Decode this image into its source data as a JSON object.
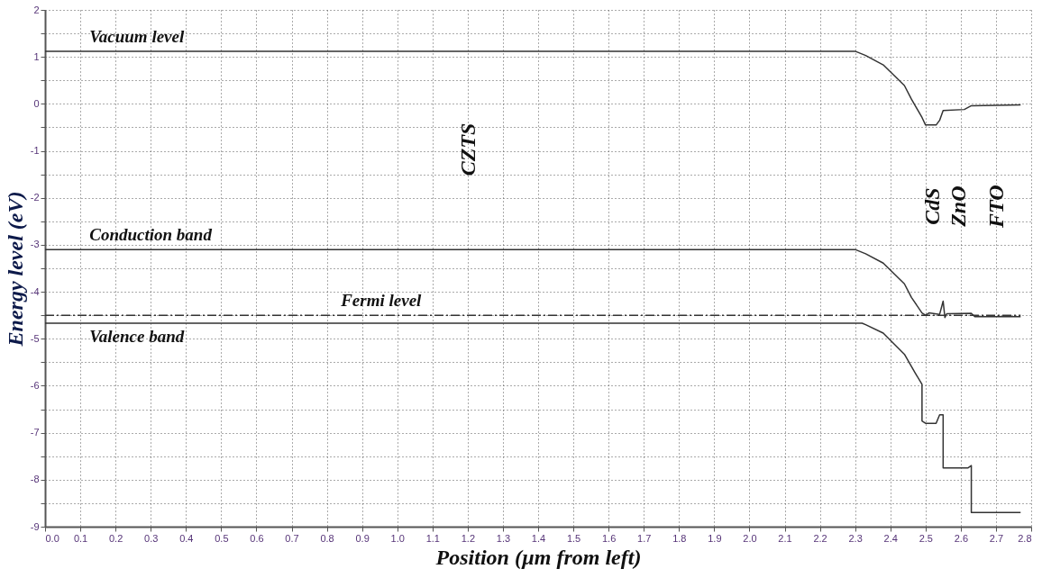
{
  "chart_data": {
    "type": "line",
    "xlabel": "Position (µm from left)",
    "ylabel": "Energy level (eV)",
    "xlim": [
      0,
      2.8
    ],
    "xticks": [
      {
        "value": 0,
        "label": "0.0"
      },
      0.1,
      0.2,
      0.3,
      0.4,
      0.5,
      0.6,
      0.7,
      0.8,
      0.9,
      {
        "value": 1,
        "label": "1.0"
      },
      1.1,
      1.2,
      1.3,
      1.4,
      1.5,
      1.6,
      1.7,
      1.8,
      1.9,
      {
        "value": 2,
        "label": "2.0"
      },
      2.1,
      2.2,
      2.3,
      2.4,
      2.5,
      2.6,
      2.7,
      2.8
    ],
    "ylim": [
      -9,
      2
    ],
    "yticks": [
      -9,
      {
        "value": -8.5,
        "label": null
      },
      -8,
      {
        "value": -7.5,
        "label": null
      },
      -7,
      {
        "value": -6.5,
        "label": null
      },
      -6,
      {
        "value": -5.5,
        "label": null
      },
      -5,
      {
        "value": -4.5,
        "label": null
      },
      -4,
      {
        "value": -3.5,
        "label": null
      },
      -3,
      {
        "value": -2.5,
        "label": null
      },
      -2,
      {
        "value": -1.5,
        "label": null
      },
      -1,
      {
        "value": -0.5,
        "label": null
      },
      0,
      {
        "value": 0.5,
        "label": null
      },
      1,
      {
        "value": 1.5,
        "label": null
      },
      2
    ],
    "grid": true,
    "marker": "none",
    "series": [
      {
        "name": "Vacuum level",
        "color": "#333333",
        "line_style": "solid",
        "x": [
          0,
          2.3,
          2.33,
          2.38,
          2.44,
          2.46,
          2.49,
          2.5,
          2.53,
          2.54,
          2.55,
          2.61,
          2.63,
          2.77
        ],
        "values": [
          1.12,
          1.12,
          1.03,
          0.83,
          0.39,
          0.1,
          -0.29,
          -0.45,
          -0.45,
          -0.35,
          -0.14,
          -0.12,
          -0.04,
          -0.02
        ]
      },
      {
        "name": "Conduction band",
        "color": "#333333",
        "line_style": "solid",
        "x": [
          0,
          2.3,
          2.33,
          2.38,
          2.44,
          2.46,
          2.49,
          2.5,
          2.51,
          2.54,
          2.55,
          2.555,
          2.56,
          2.63,
          2.64,
          2.77
        ],
        "values": [
          -3.1,
          -3.1,
          -3.19,
          -3.39,
          -3.83,
          -4.12,
          -4.45,
          -4.5,
          -4.45,
          -4.48,
          -4.2,
          -4.55,
          -4.47,
          -4.46,
          -4.53,
          -4.53
        ]
      },
      {
        "name": "Fermi level",
        "color": "#333333",
        "line_style": "dashed",
        "x": [
          0,
          2.77
        ],
        "values": [
          -4.5,
          -4.5
        ]
      },
      {
        "name": "Valence band",
        "color": "#333333",
        "line_style": "solid",
        "x": [
          0,
          2.32,
          2.33,
          2.38,
          2.44,
          2.47,
          2.49,
          2.49,
          2.5,
          2.53,
          2.54,
          2.55,
          2.55,
          2.62,
          2.63,
          2.63,
          2.77
        ],
        "values": [
          -4.67,
          -4.67,
          -4.7,
          -4.88,
          -5.33,
          -5.72,
          -5.97,
          -6.75,
          -6.8,
          -6.8,
          -6.62,
          -6.62,
          -7.75,
          -7.75,
          -7.7,
          -8.7,
          -8.7
        ]
      }
    ],
    "annotations": [
      "CZTS",
      "CdS",
      "ZnO",
      "FTO"
    ]
  }
}
